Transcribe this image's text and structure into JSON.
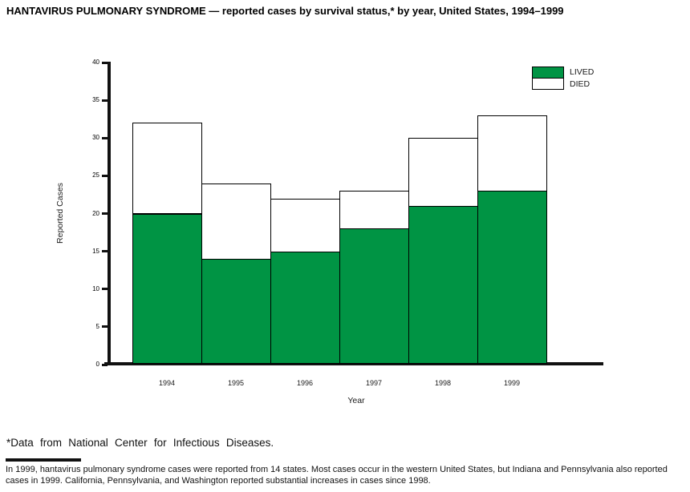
{
  "title": "HANTAVIRUS PULMONARY SYNDROME — reported cases by survival status,* by year, United States, 1994–1999",
  "chart_data": {
    "type": "bar",
    "stacked": true,
    "categories": [
      "1994",
      "1995",
      "1996",
      "1997",
      "1998",
      "1999"
    ],
    "series": [
      {
        "name": "LIVED",
        "color": "#009444",
        "values": [
          20,
          14,
          15,
          18,
          21,
          23
        ]
      },
      {
        "name": "DIED",
        "color": "#ffffff",
        "values": [
          12,
          10,
          7,
          5,
          9,
          10
        ]
      }
    ],
    "totals": [
      32,
      24,
      22,
      23,
      30,
      33
    ],
    "xlabel": "Year",
    "ylabel": "Reported Cases",
    "ylim": [
      0,
      40
    ],
    "ytick_interval": 5,
    "yticks": [
      0,
      5,
      10,
      15,
      20,
      25,
      30,
      35,
      40
    ],
    "grid": false,
    "legend_position": "top-right",
    "bar_outline_color": "#000000",
    "axis_color": "#111111"
  },
  "legend": {
    "lived_label": "LIVED",
    "died_label": "DIED"
  },
  "footnote": "*Data from National Center for Infectious Diseases.",
  "note": "In 1999, hantavirus pulmonary syndrome cases were reported from 14 states. Most cases occur in the western United States, but Indiana and Pennsylvania also reported cases in 1999. California, Pennsylvania, and Washington reported substantial increases in cases since 1998."
}
